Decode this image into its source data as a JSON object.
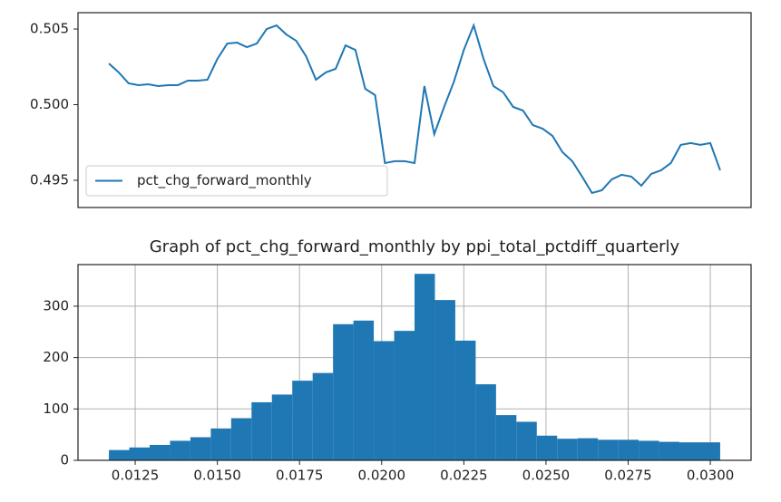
{
  "chart_data": [
    {
      "type": "line",
      "x": [
        0.0117,
        0.012,
        0.0123,
        0.0126,
        0.0129,
        0.0132,
        0.0135,
        0.0138,
        0.0141,
        0.0144,
        0.0147,
        0.015,
        0.0153,
        0.0156,
        0.0159,
        0.0162,
        0.0165,
        0.0168,
        0.0171,
        0.0174,
        0.0177,
        0.018,
        0.0183,
        0.0186,
        0.0189,
        0.0192,
        0.0195,
        0.0198,
        0.0201,
        0.0204,
        0.0207,
        0.021,
        0.0213,
        0.0216,
        0.0219,
        0.0222,
        0.0225,
        0.0228,
        0.0231,
        0.0234,
        0.0237,
        0.024,
        0.0243,
        0.0246,
        0.0249,
        0.0252,
        0.0255,
        0.0258,
        0.0261,
        0.0264,
        0.0267,
        0.027,
        0.0273,
        0.0276,
        0.0279,
        0.0282,
        0.0285,
        0.0288,
        0.0291,
        0.0294,
        0.0297,
        0.03,
        0.0303
      ],
      "series": [
        {
          "name": "pct_chg_forward_monthly",
          "color": "#1f77b4",
          "values": [
            0.50272,
            0.50213,
            0.50141,
            0.50129,
            0.50135,
            0.50123,
            0.50129,
            0.50129,
            0.50159,
            0.50159,
            0.50165,
            0.50302,
            0.50404,
            0.5041,
            0.5038,
            0.50404,
            0.505,
            0.50524,
            0.50464,
            0.50422,
            0.5032,
            0.50165,
            0.50213,
            0.50237,
            0.50392,
            0.50362,
            0.50105,
            0.50063,
            0.49614,
            0.49626,
            0.49626,
            0.49614,
            0.50123,
            0.49805,
            0.49985,
            0.50153,
            0.50362,
            0.50524,
            0.50302,
            0.50123,
            0.50081,
            0.49985,
            0.49961,
            0.49865,
            0.49841,
            0.49793,
            0.49686,
            0.49626,
            0.49524,
            0.49416,
            0.49434,
            0.49506,
            0.49536,
            0.49524,
            0.49464,
            0.49542,
            0.49566,
            0.49614,
            0.49734,
            0.49746,
            0.49734,
            0.49746,
            0.49566
          ]
        }
      ],
      "xlim": [
        0.01076,
        0.03124
      ],
      "ylim": [
        0.4932,
        0.50608
      ],
      "yticks": [
        0.495,
        {
          "value": 0.5,
          "label": "0.500"
        },
        0.505
      ],
      "legend": "lower left"
    },
    {
      "type": "histogram",
      "title": "Graph of pct_chg_forward_monthly by ppi_total_pctdiff_quarterly",
      "bins": [
        0.0117,
        0.01232,
        0.01294,
        0.01356,
        0.01418,
        0.0148,
        0.01542,
        0.01604,
        0.01666,
        0.01728,
        0.0179,
        0.01852,
        0.01914,
        0.01976,
        0.02038,
        0.021,
        0.02162,
        0.02224,
        0.02286,
        0.02348,
        0.0241,
        0.02472,
        0.02534,
        0.02596,
        0.02658,
        0.0272,
        0.02782,
        0.02844,
        0.02906,
        0.02968,
        0.0303
      ],
      "values": [
        20,
        25,
        30,
        38,
        45,
        62,
        82,
        113,
        128,
        155,
        170,
        265,
        272,
        232,
        252,
        363,
        312,
        233,
        148,
        88,
        75,
        48,
        42,
        43,
        40,
        40,
        38,
        36,
        35,
        35
      ],
      "color": "#1f77b4",
      "xlim": [
        0.01076,
        0.03124
      ],
      "ylim": [
        0,
        381
      ],
      "xticks": [
        0.0125,
        {
          "value": 0.015,
          "label": "0.0150"
        },
        0.0175,
        {
          "value": 0.02,
          "label": "0.0200"
        },
        0.0225,
        {
          "value": 0.025,
          "label": "0.0250"
        },
        0.0275,
        {
          "value": 0.03,
          "label": "0.0300"
        }
      ],
      "yticks": [
        0,
        100,
        200,
        300
      ],
      "grid": true
    }
  ]
}
